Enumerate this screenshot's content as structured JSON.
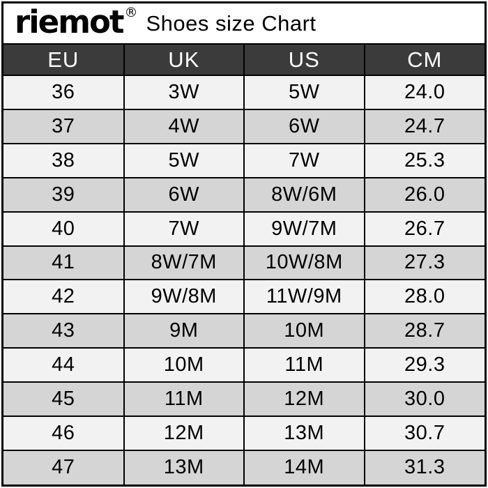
{
  "brand": {
    "logo_text": "riemot",
    "registered_mark": "®"
  },
  "title": "Shoes size Chart",
  "chart_data": {
    "type": "table",
    "title": "Shoes size Chart",
    "headers": [
      "EU",
      "UK",
      "US",
      "CM"
    ],
    "rows": [
      [
        "36",
        "3W",
        "5W",
        "24.0"
      ],
      [
        "37",
        "4W",
        "6W",
        "24.7"
      ],
      [
        "38",
        "5W",
        "7W",
        "25.3"
      ],
      [
        "39",
        "6W",
        "8W/6M",
        "26.0"
      ],
      [
        "40",
        "7W",
        "9W/7M",
        "26.7"
      ],
      [
        "41",
        "8W/7M",
        "10W/8M",
        "27.3"
      ],
      [
        "42",
        "9W/8M",
        "11W/9M",
        "28.0"
      ],
      [
        "43",
        "9M",
        "10M",
        "28.7"
      ],
      [
        "44",
        "10M",
        "11M",
        "29.3"
      ],
      [
        "45",
        "11M",
        "12M",
        "30.0"
      ],
      [
        "46",
        "12M",
        "13M",
        "30.7"
      ],
      [
        "47",
        "13M",
        "14M",
        "31.3"
      ]
    ],
    "row_shading": "alternating, first row light",
    "header_style": "dark background, white text"
  },
  "colors": {
    "header_bg": "#3b3b3b",
    "header_text": "#ffffff",
    "row_light": "#f2f2f2",
    "row_dark": "#d5d5d5",
    "border": "#000000",
    "title_bg": "#ffffff",
    "text": "#000000"
  }
}
